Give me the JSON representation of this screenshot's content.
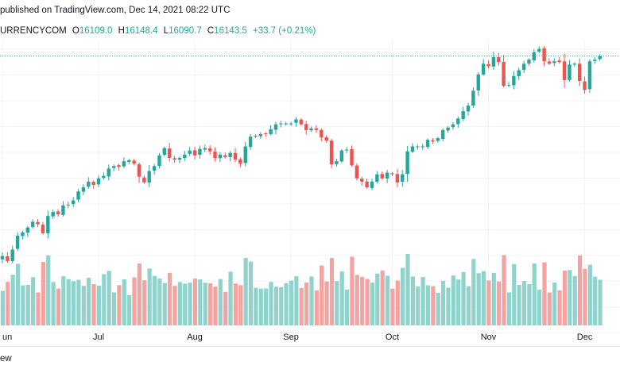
{
  "header": {
    "text": "published on TradingView.com, Dec 14, 2021 08:22 UTC"
  },
  "legend": {
    "symbol": "URRENCYCOM",
    "open_label": "O",
    "open": "16109.0",
    "high_label": "H",
    "high": "16148.4",
    "low_label": "L",
    "low": "16090.7",
    "close_label": "C",
    "close": "16143.5",
    "change": "+33.7 (+0.21%)"
  },
  "footer": {
    "text": "ew"
  },
  "colors": {
    "up": "#26a69a",
    "down": "#ef5350",
    "vol_up": "#8fd3cc",
    "vol_down": "#f5a3a1",
    "grid": "#f0f3fa",
    "last_price_line": "#26a69a"
  },
  "chart_data": {
    "type": "candlestick",
    "title": "",
    "xlabel": "",
    "ylabel": "",
    "x_ticks": [
      "un",
      "Jul",
      "Aug",
      "Sep",
      "Oct",
      "Nov",
      "Dec"
    ],
    "x_tick_index": [
      0,
      19,
      38,
      57,
      77,
      96,
      115
    ],
    "grid": true,
    "last_price_line": 16143.5,
    "closes": [
      13700,
      13640,
      13780,
      13950,
      13990,
      14050,
      14120,
      14090,
      13980,
      14190,
      14240,
      14210,
      14320,
      14330,
      14380,
      14490,
      14540,
      14610,
      14570,
      14650,
      14680,
      14770,
      14800,
      14790,
      14860,
      14870,
      14830,
      14670,
      14600,
      14740,
      14800,
      14930,
      15020,
      14900,
      14880,
      14900,
      14940,
      14990,
      14930,
      15010,
      15020,
      14980,
      14900,
      14940,
      14910,
      14960,
      14880,
      14830,
      15040,
      15160,
      15170,
      15190,
      15190,
      15250,
      15310,
      15320,
      15320,
      15320,
      15370,
      15310,
      15240,
      15260,
      15240,
      15150,
      15110,
      14820,
      14860,
      14990,
      15000,
      14810,
      14650,
      14610,
      14540,
      14610,
      14700,
      14650,
      14720,
      14700,
      14600,
      14700,
      14980,
      15040,
      15040,
      15040,
      15120,
      15100,
      15140,
      15240,
      15270,
      15310,
      15380,
      15470,
      15540,
      15720,
      15920,
      16050,
      16020,
      16130,
      16070,
      15780,
      15790,
      15900,
      15970,
      16050,
      16100,
      16190,
      16230,
      16080,
      16050,
      16080,
      16070,
      15850,
      16040,
      16050,
      15840,
      15730,
      16080,
      16100,
      16143.5
    ],
    "volume_up_down": "per-candle direction (close >= previous close)"
  }
}
